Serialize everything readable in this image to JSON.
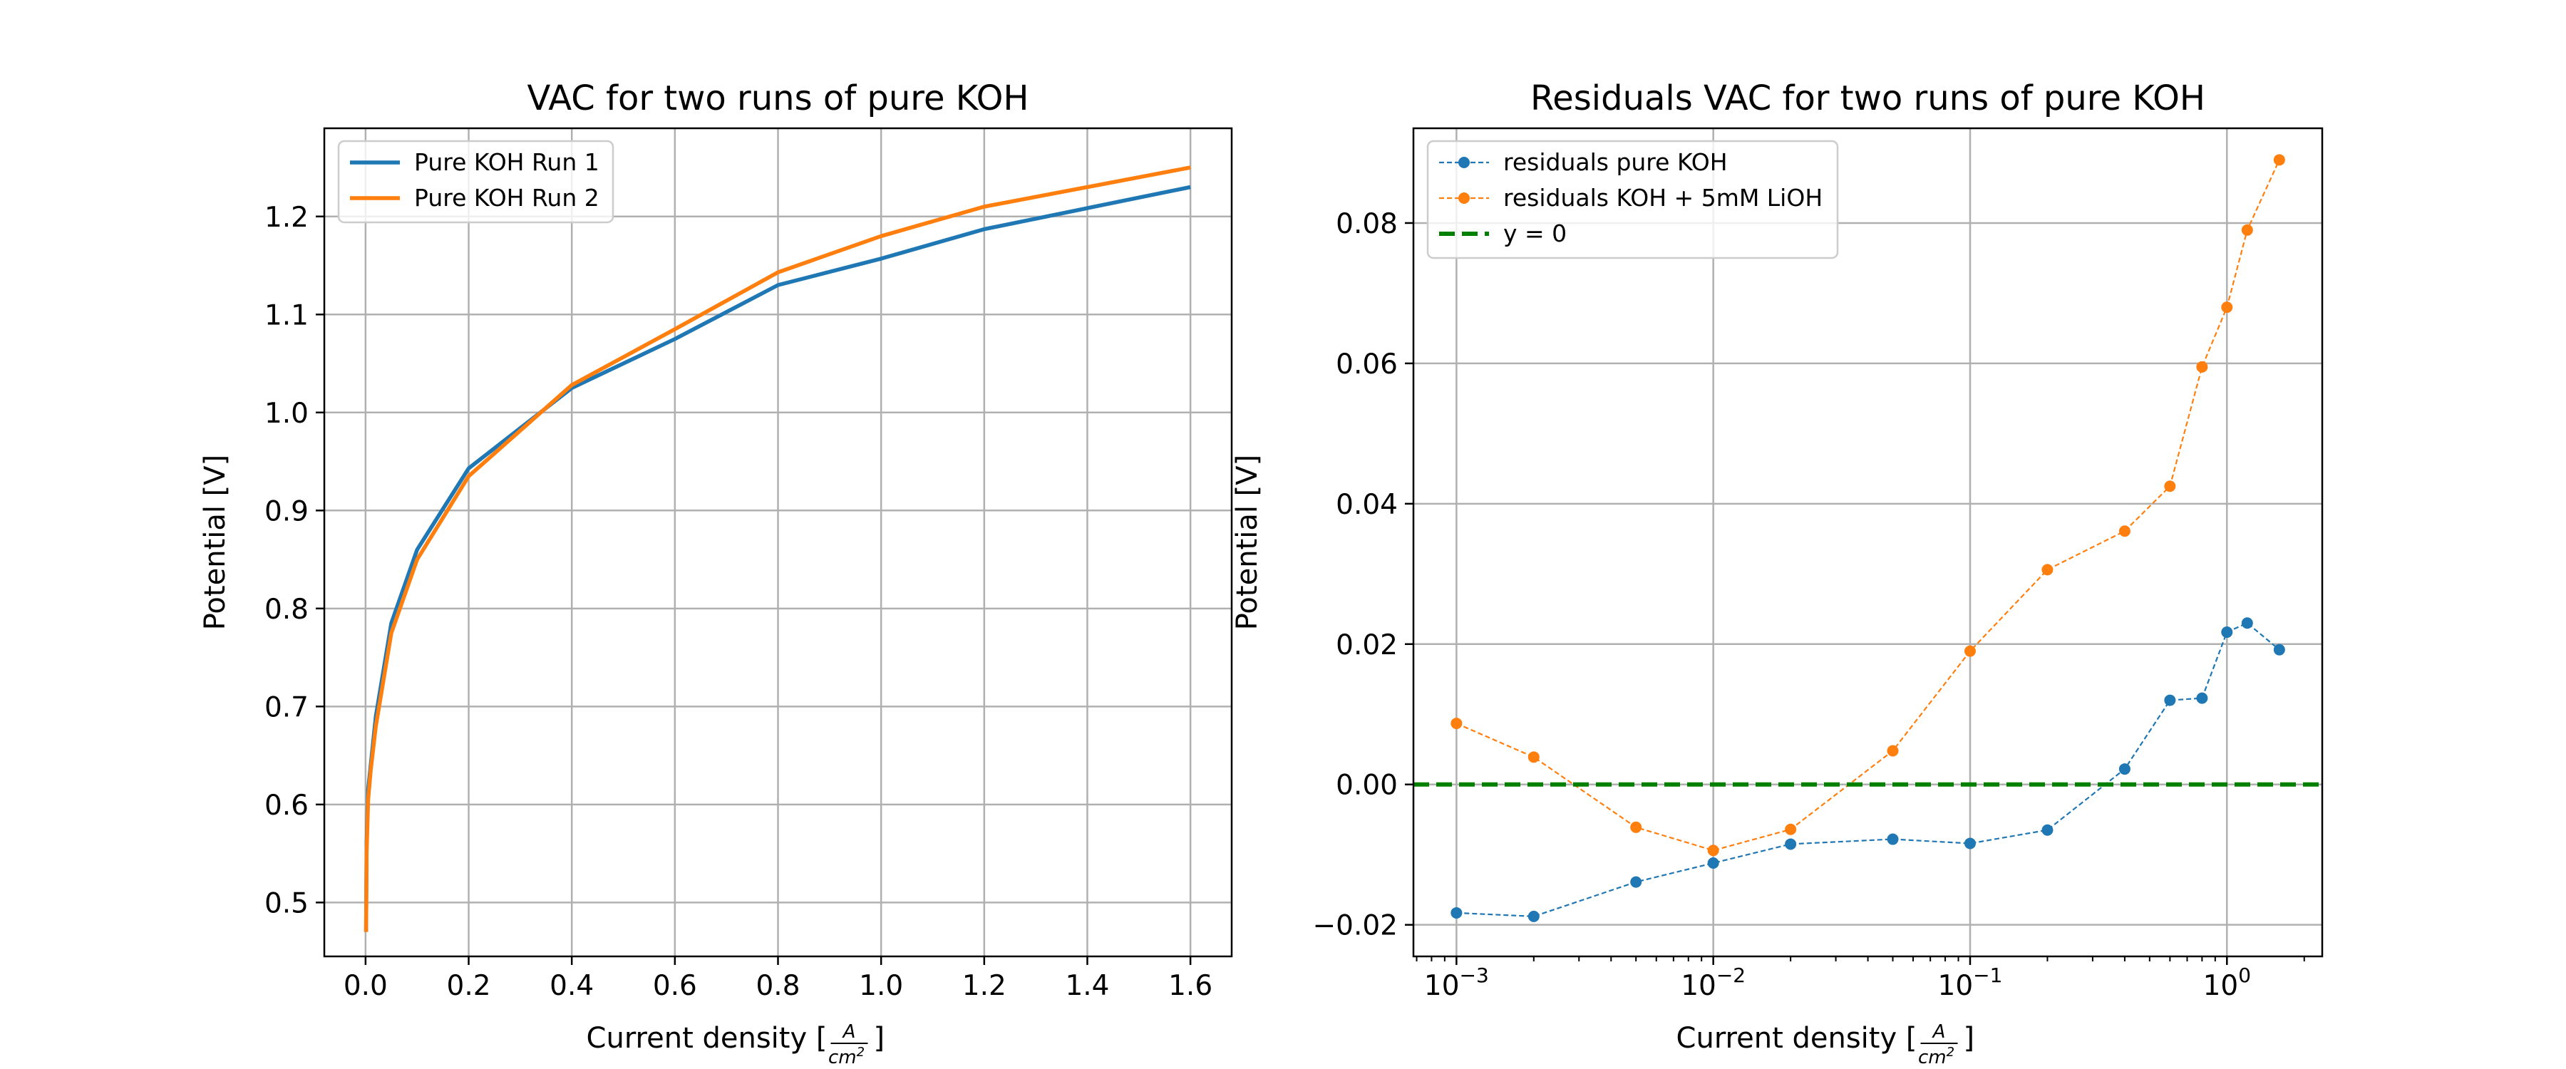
{
  "chart_data": [
    {
      "type": "line",
      "title": "VAC for two runs of pure KOH",
      "xlabel": "Current density",
      "ylabel": "Potential [V]",
      "xlim": [
        -0.08,
        1.68
      ],
      "ylim": [
        0.445,
        1.29
      ],
      "x_ticks": [
        0.0,
        0.2,
        0.4,
        0.6,
        0.8,
        1.0,
        1.2,
        1.4,
        1.6
      ],
      "y_ticks": [
        0.5,
        0.6,
        0.7,
        0.8,
        0.9,
        1.0,
        1.1,
        1.2
      ],
      "x_tick_labels": [
        "0.0",
        "0.2",
        "0.4",
        "0.6",
        "0.8",
        "1.0",
        "1.2",
        "1.4",
        "1.6"
      ],
      "y_tick_labels": [
        "0.5",
        "0.6",
        "0.7",
        "0.8",
        "0.9",
        "1.0",
        "1.1",
        "1.2"
      ],
      "grid": true,
      "legend_position": "top-left",
      "series": [
        {
          "name": "Pure KOH Run 1",
          "color": "#1f77b4",
          "x": [
            0.001,
            0.002,
            0.005,
            0.01,
            0.02,
            0.05,
            0.1,
            0.2,
            0.4,
            0.6,
            0.8,
            1.0,
            1.2,
            1.6
          ],
          "y": [
            0.47,
            0.56,
            0.615,
            0.64,
            0.69,
            0.785,
            0.86,
            0.943,
            1.025,
            1.075,
            1.13,
            1.157,
            1.187,
            1.23
          ]
        },
        {
          "name": "Pure KOH Run 2",
          "color": "#ff7f0e",
          "x": [
            0.001,
            0.002,
            0.005,
            0.01,
            0.02,
            0.05,
            0.1,
            0.2,
            0.4,
            0.6,
            0.8,
            1.0,
            1.2,
            1.6
          ],
          "y": [
            0.47,
            0.55,
            0.605,
            0.635,
            0.68,
            0.775,
            0.85,
            0.935,
            1.028,
            1.085,
            1.143,
            1.18,
            1.21,
            1.25
          ]
        }
      ]
    },
    {
      "type": "line",
      "title": "Residuals VAC for two runs of pure KOH",
      "xlabel": "Current density",
      "ylabel": "Potential [V]",
      "xscale": "log",
      "xlim": [
        0.00068,
        2.35
      ],
      "ylim": [
        -0.0245,
        0.0935
      ],
      "x_ticks": [
        0.001,
        0.01,
        0.1,
        1
      ],
      "x_tick_labels": [
        "10",
        "10",
        "10",
        "10"
      ],
      "x_tick_exponents": [
        "−3",
        "−2",
        "−1",
        "0"
      ],
      "y_ticks": [
        -0.02,
        0.0,
        0.02,
        0.04,
        0.06,
        0.08
      ],
      "y_tick_labels": [
        "−0.02",
        "0.00",
        "0.02",
        "0.04",
        "0.06",
        "0.08"
      ],
      "grid": true,
      "legend_position": "top-left",
      "series": [
        {
          "name": "residuals pure KOH",
          "color": "#1f77b4",
          "style": "dashed-markers",
          "x": [
            0.001,
            0.002,
            0.005,
            0.01,
            0.02,
            0.05,
            0.1,
            0.2,
            0.4,
            0.6,
            0.8,
            1.0,
            1.2,
            1.6
          ],
          "y": [
            -0.0183,
            -0.0188,
            -0.0139,
            -0.0112,
            -0.0085,
            -0.0078,
            -0.0084,
            -0.0065,
            0.0022,
            0.012,
            0.0123,
            0.0217,
            0.023,
            0.0192
          ]
        },
        {
          "name": "residuals KOH + 5mM LiOH",
          "color": "#ff7f0e",
          "style": "dashed-markers",
          "x": [
            0.001,
            0.002,
            0.005,
            0.01,
            0.02,
            0.05,
            0.1,
            0.2,
            0.4,
            0.6,
            0.8,
            1.0,
            1.2,
            1.6
          ],
          "y": [
            0.0087,
            0.0039,
            -0.0061,
            -0.0094,
            -0.0064,
            0.0048,
            0.019,
            0.0306,
            0.0361,
            0.0425,
            0.0595,
            0.068,
            0.079,
            0.089
          ]
        },
        {
          "name": "y = 0",
          "color": "#008000",
          "style": "reference-dashed",
          "y_constant": 0
        }
      ]
    }
  ]
}
